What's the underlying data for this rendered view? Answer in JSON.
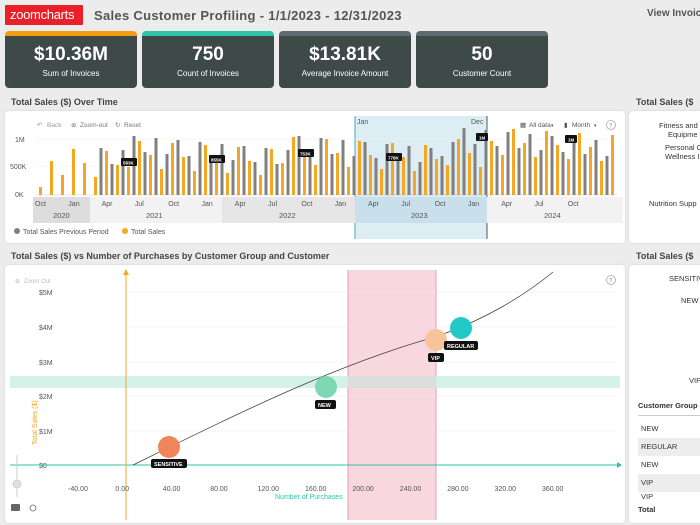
{
  "header": {
    "logo_text": "zoomcharts",
    "title": "Sales Customer Profiling - 1/1/2023 - 12/31/2023",
    "view_link": "View Invoice"
  },
  "kpis": [
    {
      "value": "$10.36M",
      "label": "Sum of Invoices",
      "accent": "#f39c12"
    },
    {
      "value": "750",
      "label": "Count of Invoices",
      "accent": "#2ec4a6"
    },
    {
      "value": "$13.81K",
      "label": "Average Invoice Amount",
      "accent": "#5c6b73"
    },
    {
      "value": "50",
      "label": "Customer Count",
      "accent": "#5c6b73"
    }
  ],
  "timeline": {
    "title": "Total Sales ($) Over Time",
    "toolbar": {
      "back": "Back",
      "zoom_out": "Zoom-out",
      "reset": "Reset",
      "all_data": "All data",
      "month": "Month",
      "help": "?"
    },
    "y_ticks": [
      "1M",
      "500K",
      "0K"
    ],
    "months": [
      "Oct",
      "Jan",
      "Apr",
      "Jul",
      "Oct",
      "Jan",
      "Apr",
      "Jul",
      "Oct",
      "Jan",
      "Apr",
      "Jul",
      "Oct",
      "Jan",
      "Apr",
      "Jul",
      "Oct"
    ],
    "years": [
      "2020",
      "2021",
      "2022",
      "2023",
      "2024"
    ],
    "selection_labels": {
      "start": "Jan",
      "end": "Dec"
    },
    "value_badges": [
      "583K",
      "855K",
      "753K",
      "778K",
      "1M",
      "1M"
    ],
    "legend": [
      {
        "name": "Total Sales Previous Period",
        "color": "#808080"
      },
      {
        "name": "Total Sales",
        "color": "#f5a623"
      }
    ]
  },
  "right_top": {
    "title": "Total Sales ($",
    "items": [
      "Fitness and",
      "Equipme",
      "Personal C",
      "Wellness I",
      "Nutrition Supp"
    ]
  },
  "scatter": {
    "title": "Total Sales ($) vs Number of Purchases by Customer Group and Customer",
    "zoom_out": "Zoom Out",
    "help": "?",
    "y_ticks": [
      "$5M",
      "$4M",
      "$3M",
      "$2M",
      "$1M",
      "$0"
    ],
    "x_ticks": [
      "-40.00",
      "0.00",
      "40.00",
      "80.00",
      "120.00",
      "160.00",
      "200.00",
      "240.00",
      "280.00",
      "320.00",
      "360.00"
    ],
    "x_label": "Number of Purchases",
    "y_label": "Total Sales ($)",
    "points": [
      {
        "label": "SENSITIVE",
        "color": "#f0855a"
      },
      {
        "label": "NEW",
        "color": "#7dd9b3"
      },
      {
        "label": "VIP",
        "color": "#f7c39a"
      },
      {
        "label": "REGULAR",
        "color": "#22c7c7"
      }
    ]
  },
  "right_bottom": {
    "title": "Total Sales ($",
    "chart_labels": [
      "SENSITIV",
      "NEW",
      "VIP"
    ],
    "table_header": "Customer Group",
    "rows": [
      "NEW",
      "REGULAR",
      "NEW",
      "VIP",
      "VIP"
    ],
    "total_label": "Total"
  }
}
